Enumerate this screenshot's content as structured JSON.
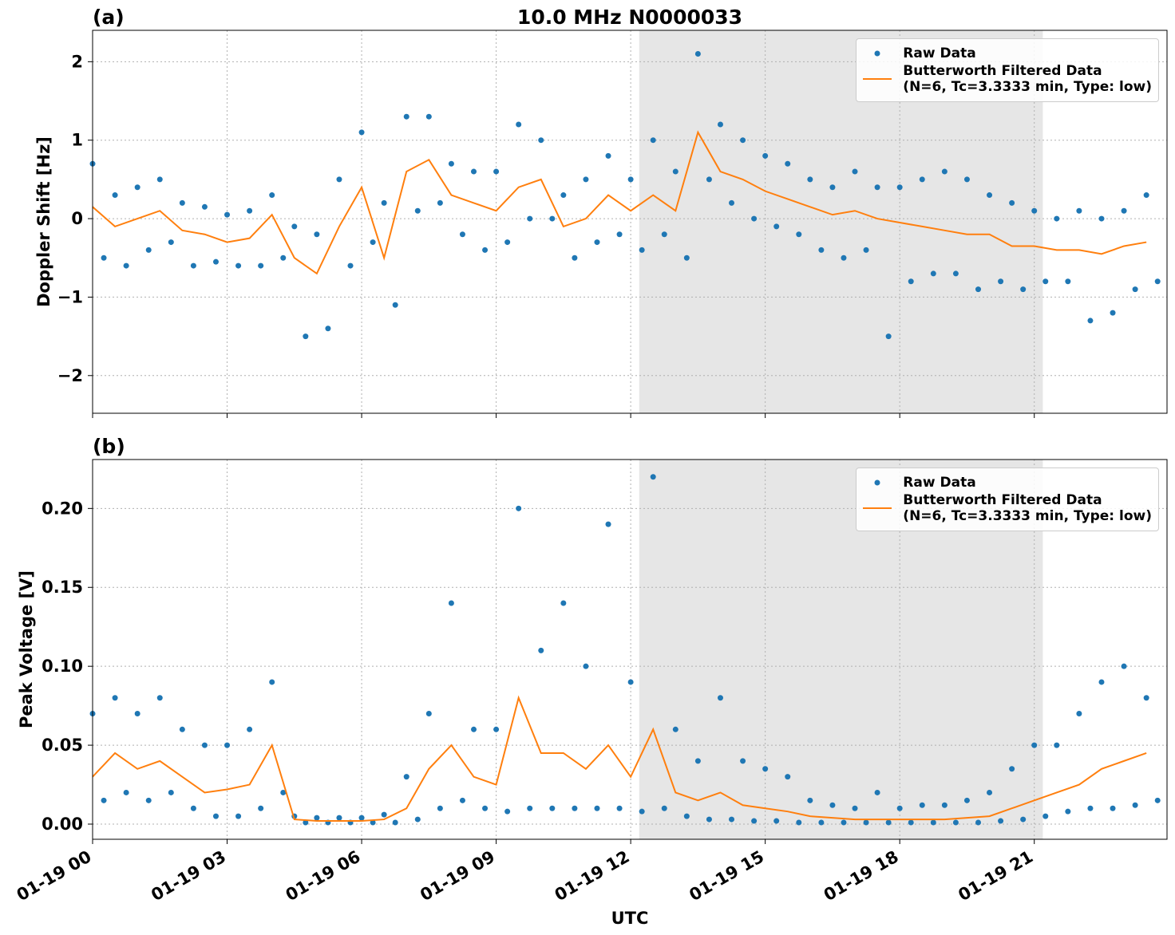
{
  "chart_data": [
    {
      "type": "combo",
      "label": "(a)",
      "title": "10.0 MHz N0000033",
      "ylabel": "Doppler Shift [Hz]",
      "xlim": [
        0,
        23.96
      ],
      "ylim": [
        -2.48,
        2.4
      ],
      "xticks": [
        0,
        3,
        6,
        9,
        12,
        15,
        18,
        21
      ],
      "yticks": [
        {
          "value": -2,
          "label": "−2"
        },
        {
          "value": -1,
          "label": "−1"
        },
        0,
        1,
        2
      ],
      "grid": true,
      "legend": "upper right",
      "shaded_span": [
        12.19,
        21.19
      ],
      "series": [
        {
          "name": "Raw Data",
          "type": "scatter",
          "color": "#1f77b4",
          "x": [
            0,
            0.25,
            0.5,
            0.75,
            1,
            1.25,
            1.5,
            1.75,
            2,
            2.25,
            2.5,
            2.75,
            3,
            3.25,
            3.5,
            3.75,
            4,
            4.25,
            4.5,
            4.75,
            5,
            5.25,
            5.5,
            5.75,
            6,
            6.25,
            6.5,
            6.75,
            7,
            7.25,
            7.5,
            7.75,
            8,
            8.25,
            8.5,
            8.75,
            9,
            9.25,
            9.5,
            9.75,
            10,
            10.25,
            10.5,
            10.75,
            11,
            11.25,
            11.5,
            11.75,
            12,
            12.25,
            12.5,
            12.75,
            13,
            13.25,
            13.5,
            13.75,
            14,
            14.25,
            14.5,
            14.75,
            15,
            15.25,
            15.5,
            15.75,
            16,
            16.25,
            16.5,
            16.75,
            17,
            17.25,
            17.5,
            17.75,
            18,
            18.25,
            18.5,
            18.75,
            19,
            19.25,
            19.5,
            19.75,
            20,
            20.25,
            20.5,
            20.75,
            21,
            21.25,
            21.5,
            21.75,
            22,
            22.25,
            22.5,
            22.75,
            23,
            23.25,
            23.5,
            23.75
          ],
          "values": [
            0.7,
            -0.5,
            0.3,
            -0.6,
            0.4,
            -0.4,
            0.5,
            -0.3,
            0.2,
            -0.6,
            0.15,
            -0.55,
            0.05,
            -0.6,
            0.1,
            -0.6,
            0.3,
            -0.5,
            -0.1,
            -1.5,
            -0.2,
            -1.4,
            0.5,
            -0.6,
            1.1,
            -0.3,
            0.2,
            -1.1,
            1.3,
            0.1,
            1.3,
            0.2,
            0.7,
            -0.2,
            0.6,
            -0.4,
            0.6,
            -0.3,
            1.2,
            0.0,
            1.0,
            0.0,
            0.3,
            -0.5,
            0.5,
            -0.3,
            0.8,
            -0.2,
            0.5,
            -0.4,
            1.0,
            -0.2,
            0.6,
            -0.5,
            2.1,
            0.5,
            1.2,
            0.2,
            1.0,
            0.0,
            0.8,
            -0.1,
            0.7,
            -0.2,
            0.5,
            -0.4,
            0.4,
            -0.5,
            0.6,
            -0.4,
            0.4,
            -1.5,
            0.4,
            -0.8,
            0.5,
            -0.7,
            0.6,
            -0.7,
            0.5,
            -0.9,
            0.3,
            -0.8,
            0.2,
            -0.9,
            0.1,
            -0.8,
            0.0,
            -0.8,
            0.1,
            -1.3,
            0.0,
            -1.2,
            0.1,
            -0.9,
            0.3,
            -0.8
          ]
        },
        {
          "name": "Butterworth Filtered Data\n(N=6, Tc=3.3333 min, Type: low)",
          "type": "line",
          "color": "#ff7f0e",
          "x": [
            0,
            0.5,
            1,
            1.5,
            2,
            2.5,
            3,
            3.5,
            4,
            4.5,
            5,
            5.5,
            6,
            6.5,
            7,
            7.5,
            8,
            8.5,
            9,
            9.5,
            10,
            10.5,
            11,
            11.5,
            12,
            12.5,
            13,
            13.5,
            14,
            14.5,
            15,
            15.5,
            16,
            16.5,
            17,
            17.5,
            18,
            18.5,
            19,
            19.5,
            20,
            20.5,
            21,
            21.5,
            22,
            22.5,
            23,
            23.5
          ],
          "values": [
            0.15,
            -0.1,
            0.0,
            0.1,
            -0.15,
            -0.2,
            -0.3,
            -0.25,
            0.05,
            -0.5,
            -0.7,
            -0.1,
            0.4,
            -0.5,
            0.6,
            0.75,
            0.3,
            0.2,
            0.1,
            0.4,
            0.5,
            -0.1,
            0.0,
            0.3,
            0.1,
            0.3,
            0.1,
            1.1,
            0.6,
            0.5,
            0.35,
            0.25,
            0.15,
            0.05,
            0.1,
            0.0,
            -0.05,
            -0.1,
            -0.15,
            -0.2,
            -0.2,
            -0.35,
            -0.35,
            -0.4,
            -0.4,
            -0.45,
            -0.35,
            -0.3
          ]
        }
      ]
    },
    {
      "type": "combo",
      "label": "(b)",
      "ylabel": "Peak Voltage [V]",
      "xlabel": "UTC",
      "xlim": [
        0,
        23.96
      ],
      "ylim": [
        -0.0096,
        0.231
      ],
      "xticks": [
        {
          "value": 0,
          "label": "01-19 00"
        },
        {
          "value": 3,
          "label": "01-19 03"
        },
        {
          "value": 6,
          "label": "01-19 06"
        },
        {
          "value": 9,
          "label": "01-19 09"
        },
        {
          "value": 12,
          "label": "01-19 12"
        },
        {
          "value": 15,
          "label": "01-19 15"
        },
        {
          "value": 18,
          "label": "01-19 18"
        },
        {
          "value": 21,
          "label": "01-19 21"
        }
      ],
      "yticks": [
        {
          "value": 0,
          "label": "0.00"
        },
        {
          "value": 0.05,
          "label": "0.05"
        },
        {
          "value": 0.1,
          "label": "0.10"
        },
        {
          "value": 0.15,
          "label": "0.15"
        },
        {
          "value": 0.2,
          "label": "0.20"
        }
      ],
      "grid": true,
      "legend": "upper right",
      "shaded_span": [
        12.19,
        21.19
      ],
      "series": [
        {
          "name": "Raw Data",
          "type": "scatter",
          "color": "#1f77b4",
          "x": [
            0,
            0.25,
            0.5,
            0.75,
            1,
            1.25,
            1.5,
            1.75,
            2,
            2.25,
            2.5,
            2.75,
            3,
            3.25,
            3.5,
            3.75,
            4,
            4.25,
            4.5,
            4.75,
            5,
            5.25,
            5.5,
            5.75,
            6,
            6.25,
            6.5,
            6.75,
            7,
            7.25,
            7.5,
            7.75,
            8,
            8.25,
            8.5,
            8.75,
            9,
            9.25,
            9.5,
            9.75,
            10,
            10.25,
            10.5,
            10.75,
            11,
            11.25,
            11.5,
            11.75,
            12,
            12.25,
            12.5,
            12.75,
            13,
            13.25,
            13.5,
            13.75,
            14,
            14.25,
            14.5,
            14.75,
            15,
            15.25,
            15.5,
            15.75,
            16,
            16.25,
            16.5,
            16.75,
            17,
            17.25,
            17.5,
            17.75,
            18,
            18.25,
            18.5,
            18.75,
            19,
            19.25,
            19.5,
            19.75,
            20,
            20.25,
            20.5,
            20.75,
            21,
            21.25,
            21.5,
            21.75,
            22,
            22.25,
            22.5,
            22.75,
            23,
            23.25,
            23.5,
            23.75
          ],
          "values": [
            0.07,
            0.015,
            0.08,
            0.02,
            0.07,
            0.015,
            0.08,
            0.02,
            0.06,
            0.01,
            0.05,
            0.005,
            0.05,
            0.005,
            0.06,
            0.01,
            0.09,
            0.02,
            0.005,
            0.001,
            0.004,
            0.001,
            0.004,
            0.001,
            0.004,
            0.001,
            0.006,
            0.001,
            0.03,
            0.003,
            0.07,
            0.01,
            0.14,
            0.015,
            0.06,
            0.01,
            0.06,
            0.008,
            0.2,
            0.01,
            0.11,
            0.01,
            0.14,
            0.01,
            0.1,
            0.01,
            0.19,
            0.01,
            0.09,
            0.008,
            0.22,
            0.01,
            0.06,
            0.005,
            0.04,
            0.003,
            0.08,
            0.003,
            0.04,
            0.002,
            0.035,
            0.002,
            0.03,
            0.001,
            0.015,
            0.001,
            0.012,
            0.001,
            0.01,
            0.001,
            0.02,
            0.001,
            0.01,
            0.001,
            0.012,
            0.001,
            0.012,
            0.001,
            0.015,
            0.001,
            0.02,
            0.002,
            0.035,
            0.003,
            0.05,
            0.005,
            0.05,
            0.008,
            0.07,
            0.01,
            0.09,
            0.01,
            0.1,
            0.012,
            0.08,
            0.015
          ]
        },
        {
          "name": "Butterworth Filtered Data\n(N=6, Tc=3.3333 min, Type: low)",
          "type": "line",
          "color": "#ff7f0e",
          "x": [
            0,
            0.5,
            1,
            1.5,
            2,
            2.5,
            3,
            3.5,
            4,
            4.5,
            5,
            5.5,
            6,
            6.5,
            7,
            7.5,
            8,
            8.5,
            9,
            9.5,
            10,
            10.5,
            11,
            11.5,
            12,
            12.5,
            13,
            13.5,
            14,
            14.5,
            15,
            15.5,
            16,
            16.5,
            17,
            17.5,
            18,
            18.5,
            19,
            19.5,
            20,
            20.5,
            21,
            21.5,
            22,
            22.5,
            23,
            23.5
          ],
          "values": [
            0.03,
            0.045,
            0.035,
            0.04,
            0.03,
            0.02,
            0.022,
            0.025,
            0.05,
            0.003,
            0.002,
            0.002,
            0.002,
            0.003,
            0.01,
            0.035,
            0.05,
            0.03,
            0.025,
            0.08,
            0.045,
            0.045,
            0.035,
            0.05,
            0.03,
            0.06,
            0.02,
            0.015,
            0.02,
            0.012,
            0.01,
            0.008,
            0.005,
            0.004,
            0.003,
            0.003,
            0.003,
            0.003,
            0.003,
            0.004,
            0.005,
            0.01,
            0.015,
            0.02,
            0.025,
            0.035,
            0.04,
            0.045
          ]
        }
      ]
    }
  ]
}
